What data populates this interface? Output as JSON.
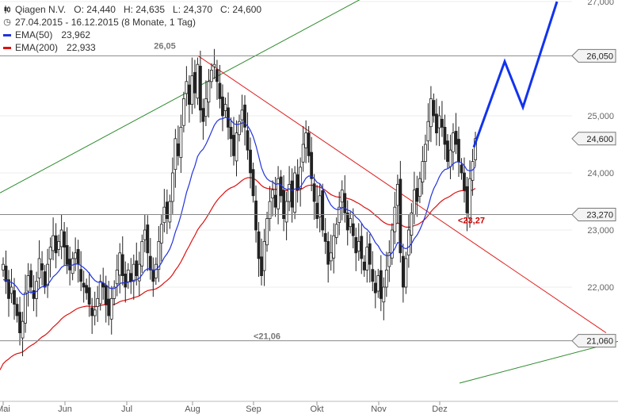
{
  "header": {
    "title_line": "Qiagen N.V.   O: 24,440   H: 24,635   L: 24,370   C: 24,600",
    "range_line": "27.04.2015 - 16.12.2015 (8 Monate, 1 Tag)",
    "ema50_label": "EMA(50)",
    "ema50_value": "23,962",
    "ema200_label": "EMA(200)",
    "ema200_value": "22,933",
    "ema50_color": "#2233dd",
    "ema200_color": "#dd1111"
  },
  "chart_data": {
    "type": "candlestick",
    "x_tick_labels": [
      "Mai",
      "Jun",
      "Jul",
      "Aug",
      "Sep",
      "Okt",
      "Nov",
      "Dez"
    ],
    "y_tick_labels": [
      "22,000",
      "23,000",
      "24,000",
      "25,000",
      "27,000"
    ],
    "ylim": [
      20.5,
      27.3
    ],
    "price_tags": [
      {
        "value": 26.05,
        "label": "26,050"
      },
      {
        "value": 24.6,
        "label": "24,600"
      },
      {
        "value": 23.27,
        "label": "23,270"
      },
      {
        "value": 21.06,
        "label": "21,060"
      }
    ],
    "horizontal_lines": [
      26.05,
      23.27,
      21.06
    ],
    "annotations": [
      {
        "text": "26,05",
        "value": 26.05,
        "color": "#777777"
      },
      {
        "text": "<21,06",
        "value": 21.06,
        "color": "#777777"
      },
      {
        "text": "<23,27",
        "value": 23.27,
        "color": "#cc0000"
      }
    ],
    "series": [
      {
        "type": "candlestick",
        "close": [
          22.4,
          22.1,
          21.8,
          22.0,
          21.7,
          21.5,
          21.2,
          21.4,
          21.9,
          22.2,
          22.0,
          21.8,
          22.1,
          22.5,
          22.3,
          22.0,
          22.4,
          22.7,
          22.9,
          22.6,
          22.8,
          23.0,
          22.7,
          22.4,
          22.3,
          22.5,
          22.6,
          22.4,
          22.1,
          22.0,
          21.9,
          21.7,
          21.5,
          21.6,
          21.8,
          22.1,
          22.0,
          21.7,
          21.5,
          21.8,
          22.0,
          22.3,
          22.6,
          22.2,
          22.0,
          22.3,
          22.1,
          22.4,
          22.2,
          22.4,
          22.8,
          23.0,
          22.6,
          22.3,
          22.1,
          22.4,
          22.8,
          23.1,
          23.4,
          23.2,
          23.5,
          24.0,
          24.6,
          24.3,
          24.8,
          25.3,
          25.6,
          25.2,
          25.7,
          25.4,
          25.9,
          25.1,
          24.9,
          25.3,
          25.6,
          25.8,
          25.9,
          25.6,
          25.3,
          25.0,
          25.2,
          24.8,
          24.6,
          24.3,
          24.7,
          24.9,
          25.1,
          24.8,
          24.4,
          24.0,
          23.6,
          23.0,
          22.5,
          22.2,
          22.8,
          23.2,
          23.5,
          23.7,
          23.4,
          23.9,
          23.6,
          23.2,
          23.5,
          23.8,
          23.4,
          24.0,
          23.7,
          24.1,
          24.5,
          24.7,
          24.3,
          23.9,
          23.5,
          23.2,
          23.6,
          23.0,
          22.8,
          22.4,
          22.6,
          22.9,
          23.1,
          23.4,
          23.7,
          23.3,
          23.0,
          23.2,
          22.9,
          22.6,
          22.8,
          22.5,
          22.3,
          22.7,
          22.4,
          22.1,
          21.9,
          22.2,
          21.8,
          22.0,
          22.3,
          22.6,
          23.0,
          23.4,
          23.8,
          22.6,
          22.0,
          22.5,
          23.0,
          23.3,
          23.7,
          23.5,
          23.9,
          24.2,
          24.5,
          24.9,
          25.3,
          25.0,
          24.7,
          25.0,
          24.8,
          24.5,
          24.2,
          24.4,
          24.7,
          24.5,
          24.2,
          24.0,
          23.7,
          23.3,
          23.9,
          24.2,
          24.6
        ]
      },
      {
        "name": "EMA(50)",
        "type": "line"
      },
      {
        "name": "EMA(200)",
        "type": "line"
      }
    ],
    "trend_lines": 3,
    "projection_arrow": true
  }
}
